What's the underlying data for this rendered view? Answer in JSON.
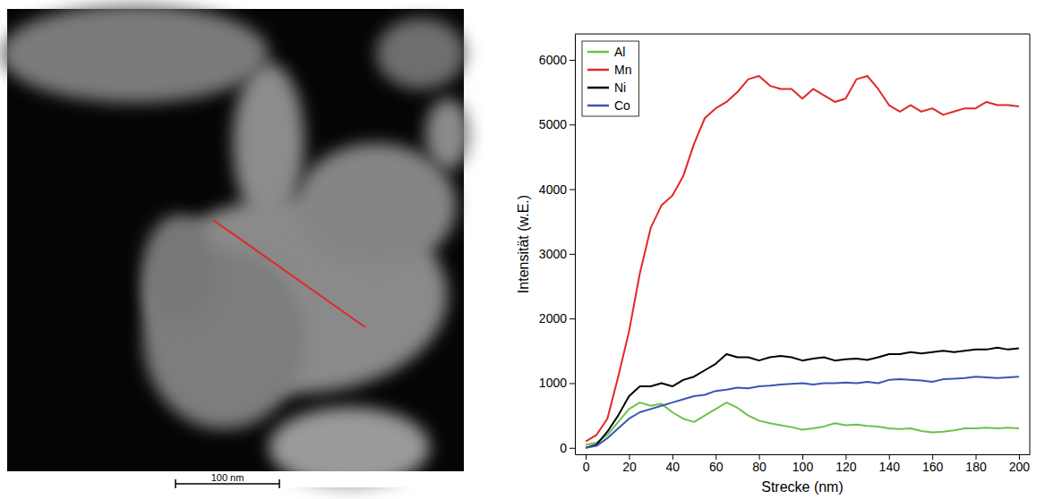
{
  "chart_data": {
    "type": "line",
    "x_label": "Strecke (nm)",
    "y_label": "Intensität (w.E.)",
    "x": [
      0,
      5,
      10,
      15,
      20,
      25,
      30,
      35,
      40,
      45,
      50,
      55,
      60,
      65,
      70,
      75,
      80,
      85,
      90,
      95,
      100,
      105,
      110,
      115,
      120,
      125,
      130,
      135,
      140,
      145,
      150,
      155,
      160,
      165,
      170,
      175,
      180,
      185,
      190,
      195,
      200
    ],
    "series": [
      {
        "name": "Al",
        "color": "#6cc24a",
        "values": [
          50,
          80,
          200,
          400,
          600,
          700,
          650,
          680,
          550,
          450,
          400,
          500,
          600,
          700,
          620,
          500,
          420,
          380,
          350,
          320,
          280,
          300,
          330,
          380,
          350,
          360,
          340,
          330,
          300,
          290,
          300,
          260,
          240,
          250,
          270,
          300,
          300,
          310,
          300,
          310,
          300
        ]
      },
      {
        "name": "Mn",
        "color": "#e3262b",
        "values": [
          100,
          200,
          450,
          1100,
          1800,
          2700,
          3400,
          3750,
          3900,
          4200,
          4700,
          5100,
          5250,
          5350,
          5500,
          5700,
          5750,
          5600,
          5550,
          5550,
          5400,
          5550,
          5450,
          5350,
          5400,
          5700,
          5750,
          5550,
          5300,
          5200,
          5300,
          5200,
          5250,
          5150,
          5200,
          5250,
          5250,
          5350,
          5300,
          5300,
          5280
        ]
      },
      {
        "name": "Ni",
        "color": "#000000",
        "values": [
          0,
          50,
          250,
          500,
          800,
          950,
          950,
          1000,
          950,
          1050,
          1100,
          1200,
          1300,
          1450,
          1400,
          1400,
          1350,
          1400,
          1420,
          1400,
          1350,
          1380,
          1400,
          1350,
          1370,
          1380,
          1360,
          1400,
          1450,
          1450,
          1480,
          1460,
          1480,
          1500,
          1480,
          1500,
          1520,
          1520,
          1550,
          1520,
          1540
        ]
      },
      {
        "name": "Co",
        "color": "#3a55b4",
        "values": [
          0,
          30,
          150,
          300,
          450,
          550,
          600,
          650,
          700,
          750,
          800,
          820,
          880,
          900,
          930,
          920,
          950,
          960,
          980,
          990,
          1000,
          980,
          1000,
          1000,
          1010,
          1000,
          1020,
          1000,
          1050,
          1060,
          1050,
          1040,
          1020,
          1060,
          1070,
          1080,
          1100,
          1090,
          1080,
          1090,
          1100
        ]
      }
    ],
    "xlim": [
      -5,
      205
    ],
    "xticks": [
      0,
      20,
      40,
      60,
      80,
      100,
      120,
      140,
      160,
      180,
      200
    ],
    "ylim": [
      -100,
      6400
    ],
    "yticks": [
      0,
      1000,
      2000,
      3000,
      4000,
      5000,
      6000
    ],
    "grid": false,
    "legend": "top-left"
  },
  "micrograph": {
    "scale_bar_label": "100 nm"
  }
}
